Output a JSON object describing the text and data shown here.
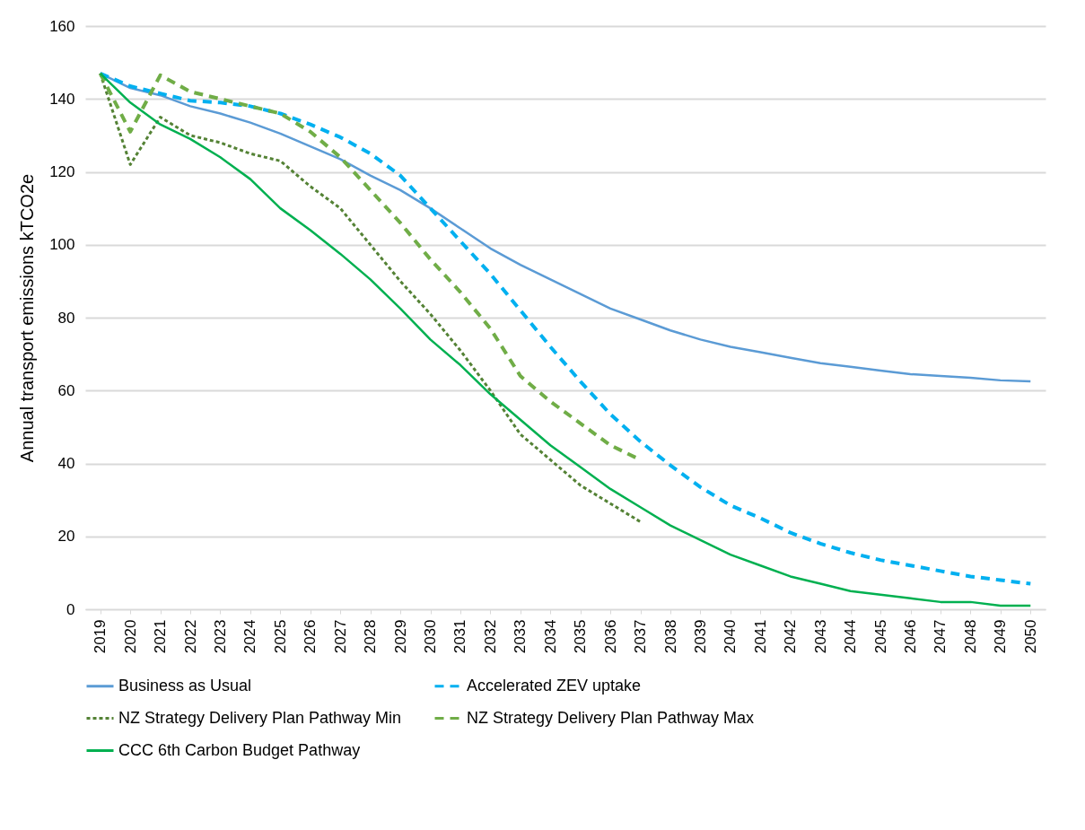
{
  "chart_data": {
    "type": "line",
    "ylabel": "Annual transport emissions kTCO2e",
    "categories": [
      "2019",
      "2020",
      "2021",
      "2022",
      "2023",
      "2024",
      "2025",
      "2026",
      "2027",
      "2028",
      "2029",
      "2030",
      "2031",
      "2032",
      "2033",
      "2034",
      "2035",
      "2036",
      "2037",
      "2038",
      "2039",
      "2040",
      "2041",
      "2042",
      "2043",
      "2044",
      "2045",
      "2046",
      "2047",
      "2048",
      "2049",
      "2050"
    ],
    "series": [
      {
        "name": "Business as Usual",
        "color": "#5b9bd5",
        "line_style": "solid",
        "values": [
          147,
          143,
          141,
          138,
          136,
          133.5,
          130.5,
          127,
          123.5,
          119,
          115,
          110,
          104.5,
          99,
          94.5,
          90.5,
          86.5,
          82.5,
          79.5,
          76.5,
          74,
          72,
          70.5,
          69,
          67.5,
          66.5,
          65.5,
          64.5,
          64,
          63.5,
          62.8,
          62.5
        ]
      },
      {
        "name": "Accelerated ZEV uptake",
        "color": "#00b0f0",
        "line_style": "dashed",
        "values": [
          147,
          143.5,
          141.5,
          139.5,
          139,
          138,
          136,
          133,
          129.5,
          125,
          119,
          110,
          101,
          92,
          82,
          72,
          62.5,
          53.5,
          46,
          39.5,
          33.5,
          28.5,
          25,
          21,
          18,
          15.5,
          13.5,
          12,
          10.5,
          9,
          8,
          7
        ]
      },
      {
        "name": "NZ Strategy Delivery Plan Pathway Min",
        "color": "#548235",
        "line_style": "dotted",
        "values": [
          147,
          122,
          135,
          130,
          128,
          125,
          123,
          116,
          110,
          100,
          90,
          81,
          71,
          60,
          48,
          41,
          34,
          29,
          24,
          null,
          null,
          null,
          null,
          null,
          null,
          null,
          null,
          null,
          null,
          null,
          null,
          null
        ]
      },
      {
        "name": "NZ Strategy Delivery Plan Pathway Max",
        "color": "#70ad47",
        "line_style": "dashed",
        "values": [
          147,
          131,
          146.5,
          142,
          140,
          138,
          136,
          131,
          124,
          115,
          106,
          96,
          87,
          77,
          64,
          57,
          51,
          45,
          41,
          null,
          null,
          null,
          null,
          null,
          null,
          null,
          null,
          null,
          null,
          null,
          null,
          null
        ]
      },
      {
        "name": "CCC 6th Carbon Budget Pathway",
        "color": "#00b050",
        "line_style": "solid",
        "values": [
          147,
          139,
          133,
          129,
          124,
          118,
          110,
          104,
          97.5,
          90.5,
          82.5,
          74,
          67,
          59,
          52,
          45,
          39,
          33,
          28,
          23,
          19,
          15,
          12,
          9,
          7,
          5,
          4,
          3,
          2,
          2,
          1,
          1
        ]
      }
    ],
    "ylim": [
      0,
      160
    ],
    "yticks": [
      0,
      20,
      40,
      60,
      80,
      100,
      120,
      140,
      160
    ],
    "grid": "y",
    "legend": "bottom"
  }
}
